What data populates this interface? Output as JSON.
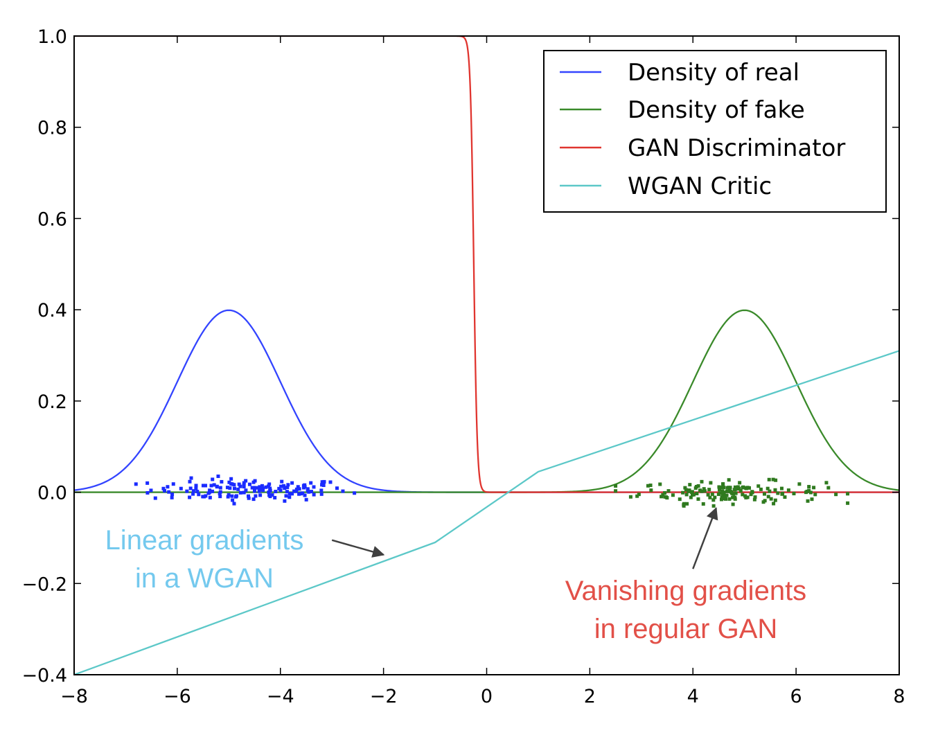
{
  "chart_data": {
    "type": "line",
    "xlim": [
      -8,
      8
    ],
    "ylim": [
      -0.4,
      1.0
    ],
    "x_ticks": [
      -8,
      -6,
      -4,
      -2,
      0,
      2,
      4,
      6,
      8
    ],
    "x_tick_labels": [
      "−8",
      "−6",
      "−4",
      "−2",
      "0",
      "2",
      "4",
      "6",
      "8"
    ],
    "y_ticks": [
      -0.4,
      -0.2,
      0.0,
      0.2,
      0.4,
      0.6,
      0.8,
      1.0
    ],
    "y_tick_labels": [
      "−0.4",
      "−0.2",
      "0.0",
      "0.2",
      "0.4",
      "0.6",
      "0.8",
      "1.0"
    ],
    "grid": false,
    "legend_position": "top-right",
    "colors": {
      "real": "#3344ff",
      "fake": "#3a8a2a",
      "gan": "#e0352f",
      "wgan": "#5cc8c8",
      "annot_wgan": "#74c9ee",
      "annot_gan": "#e25048"
    },
    "series": [
      {
        "name": "Density of real",
        "kind": "normal_pdf",
        "mean": -5,
        "std": 1,
        "x": [
          -8,
          -7,
          -6,
          -5.5,
          -5,
          -4.5,
          -4,
          -3,
          -2,
          8
        ],
        "y": [
          0.004,
          0.054,
          0.242,
          0.352,
          0.399,
          0.352,
          0.242,
          0.054,
          0.004,
          0.0
        ]
      },
      {
        "name": "Density of fake",
        "kind": "normal_pdf",
        "mean": 5,
        "std": 1,
        "x": [
          -8,
          2,
          3,
          4,
          4.5,
          5,
          5.5,
          6,
          7,
          8
        ],
        "y": [
          0.0,
          0.004,
          0.054,
          0.242,
          0.352,
          0.399,
          0.352,
          0.242,
          0.054,
          0.004
        ]
      },
      {
        "name": "GAN Discriminator",
        "kind": "sigmoid",
        "center": -0.25,
        "steepness": 30,
        "x": [
          -0.7,
          -0.5,
          -0.3,
          -0.25,
          -0.2,
          0.0,
          0.3,
          8
        ],
        "y": [
          1.0,
          0.9995,
          0.82,
          0.5,
          0.18,
          0.0006,
          0.0,
          0.0
        ]
      },
      {
        "name": "WGAN Critic",
        "kind": "piecewise_linear",
        "x": [
          -8,
          -1,
          1,
          8
        ],
        "y": [
          -0.4,
          -0.11,
          0.045,
          0.31
        ]
      }
    ],
    "scatter": [
      {
        "name": "real_samples",
        "color": "#1a2bff",
        "count": 150,
        "x_range": [
          -7,
          -2.2
        ],
        "y_range": [
          -0.025,
          0.035
        ]
      },
      {
        "name": "fake_samples",
        "color": "#2f7a1f",
        "count": 150,
        "x_range": [
          2.5,
          7
        ],
        "y_range": [
          -0.03,
          0.03
        ]
      }
    ],
    "annotations": [
      {
        "lines": [
          "Linear gradients",
          "in a WGAN"
        ],
        "color_key": "annot_wgan",
        "arrow_from": [
          -3.0,
          -0.105
        ],
        "arrow_to": [
          -2.0,
          -0.137
        ]
      },
      {
        "lines": [
          "Vanishing gradients",
          "in regular GAN"
        ],
        "color_key": "annot_gan",
        "arrow_from": [
          4.0,
          -0.168
        ],
        "arrow_to": [
          4.45,
          -0.035
        ]
      }
    ]
  }
}
